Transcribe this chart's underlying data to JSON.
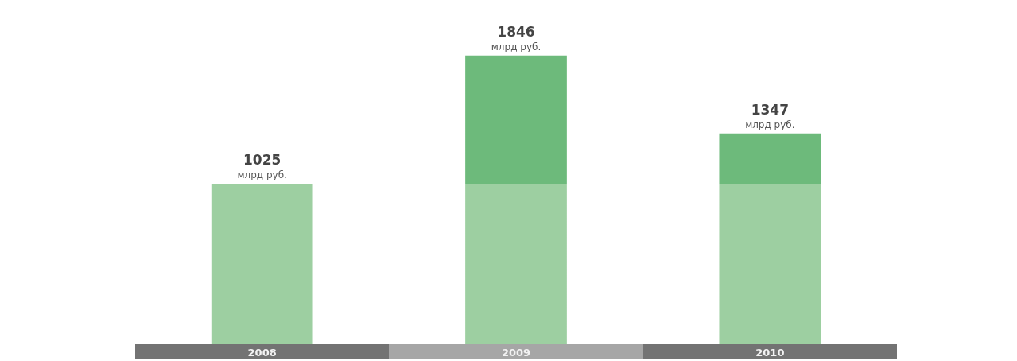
{
  "chart_data": {
    "type": "bar",
    "categories": [
      "2008",
      "2009",
      "2010"
    ],
    "series": [
      {
        "color": "#9dcfa1",
        "colors": [
          "#9dcfa1",
          "#6dba7b",
          "#6dba7b"
        ],
        "values": [
          1025,
          1846,
          1347
        ]
      }
    ],
    "data_labels": true,
    "annotations": [
      {
        "text": "млрд руб.",
        "x": "2008",
        "y": 1025
      },
      {
        "text": "млрд руб.",
        "x": "2009",
        "y": 1846
      },
      {
        "text": "млрд руб.",
        "x": "2010",
        "y": 1347
      }
    ],
    "ref_lines": [
      {
        "axis": "y",
        "value": 1025,
        "label": null,
        "color": "#c3c9dd",
        "line_style": "dashed"
      }
    ]
  }
}
